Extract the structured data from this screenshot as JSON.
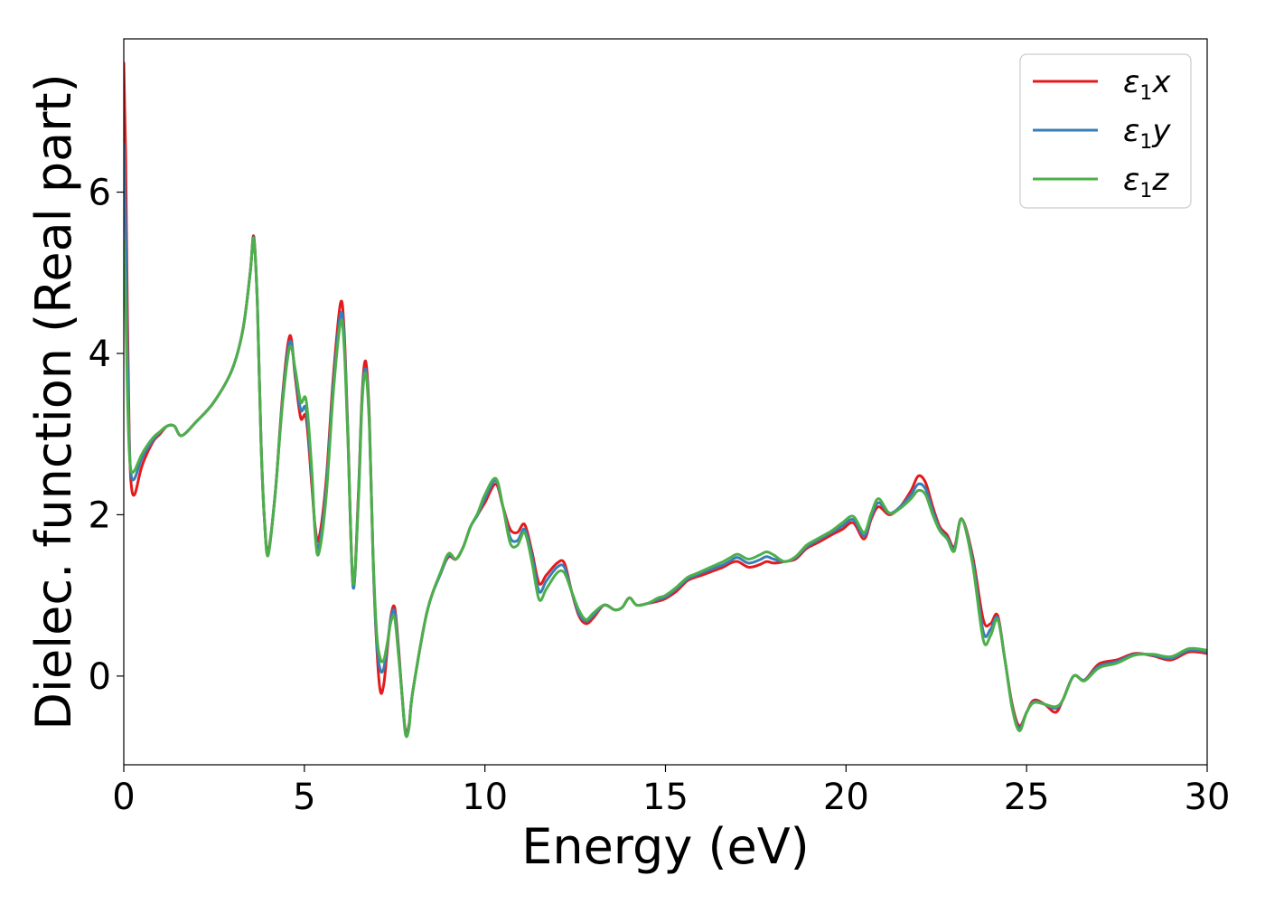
{
  "chart_data": {
    "type": "line",
    "title": "",
    "xlabel": "Energy (eV)",
    "ylabel": "Dielec. function (Real part)",
    "xlim": [
      0,
      30
    ],
    "ylim": [
      -1.1,
      7.9
    ],
    "xticks": [
      0,
      5,
      10,
      15,
      20,
      25,
      30
    ],
    "yticks": [
      0,
      2,
      4,
      6
    ],
    "grid": false,
    "legend_position": "top-right",
    "series": [
      {
        "name": "ε1x",
        "symbol": "ε",
        "subscript": "1",
        "axis": "x",
        "color": "#e41a1c",
        "x": [
          0,
          0.05,
          0.1,
          0.15,
          0.2,
          0.3,
          0.5,
          0.8,
          1.0,
          1.2,
          1.4,
          1.6,
          2.0,
          2.5,
          3.0,
          3.3,
          3.5,
          3.6,
          3.7,
          3.8,
          3.9,
          4.0,
          4.2,
          4.4,
          4.6,
          4.75,
          4.9,
          5.05,
          5.2,
          5.3,
          5.4,
          5.6,
          5.8,
          6.0,
          6.1,
          6.2,
          6.35,
          6.5,
          6.6,
          6.7,
          6.8,
          6.9,
          7.0,
          7.1,
          7.2,
          7.3,
          7.4,
          7.5,
          7.6,
          7.7,
          7.8,
          7.9,
          8.0,
          8.4,
          8.8,
          9.0,
          9.2,
          9.4,
          9.6,
          9.8,
          10.0,
          10.3,
          10.5,
          10.7,
          10.9,
          11.1,
          11.3,
          11.5,
          11.7,
          12.0,
          12.2,
          12.4,
          12.6,
          12.8,
          13.0,
          13.3,
          13.6,
          13.8,
          14.0,
          14.2,
          14.5,
          14.8,
          15.0,
          15.3,
          15.6,
          15.8,
          16.0,
          16.3,
          16.6,
          16.8,
          17.0,
          17.3,
          17.6,
          17.8,
          18.0,
          18.3,
          18.6,
          18.9,
          19.2,
          19.6,
          19.9,
          20.2,
          20.5,
          20.7,
          20.9,
          21.2,
          21.5,
          21.8,
          22.0,
          22.2,
          22.4,
          22.6,
          22.8,
          23.0,
          23.2,
          23.5,
          23.8,
          24.0,
          24.2,
          24.4,
          24.6,
          24.8,
          25.0,
          25.2,
          25.5,
          25.8,
          26.0,
          26.3,
          26.6,
          27.0,
          27.5,
          28.0,
          28.5,
          29.0,
          29.5,
          30.0
        ],
        "y": [
          7.6,
          6.5,
          4.5,
          3.0,
          2.4,
          2.25,
          2.6,
          2.9,
          3.0,
          3.1,
          3.1,
          2.98,
          3.15,
          3.4,
          3.8,
          4.3,
          5.0,
          5.45,
          4.6,
          2.9,
          1.9,
          1.55,
          2.3,
          3.5,
          4.22,
          3.7,
          3.2,
          3.2,
          2.4,
          1.85,
          1.7,
          2.4,
          3.7,
          4.62,
          4.3,
          3.1,
          1.12,
          2.3,
          3.5,
          3.9,
          3.2,
          1.5,
          0.4,
          -0.18,
          -0.1,
          0.35,
          0.75,
          0.85,
          0.4,
          -0.2,
          -0.68,
          -0.6,
          -0.2,
          0.8,
          1.3,
          1.48,
          1.45,
          1.6,
          1.85,
          2.0,
          2.15,
          2.38,
          2.1,
          1.82,
          1.78,
          1.88,
          1.55,
          1.15,
          1.25,
          1.4,
          1.4,
          1.05,
          0.75,
          0.65,
          0.72,
          0.88,
          0.82,
          0.85,
          0.97,
          0.88,
          0.9,
          0.93,
          0.96,
          1.05,
          1.18,
          1.22,
          1.25,
          1.3,
          1.35,
          1.4,
          1.42,
          1.35,
          1.38,
          1.42,
          1.4,
          1.42,
          1.45,
          1.58,
          1.65,
          1.75,
          1.82,
          1.9,
          1.7,
          1.95,
          2.1,
          2.0,
          2.1,
          2.3,
          2.48,
          2.4,
          2.1,
          1.85,
          1.75,
          1.6,
          1.95,
          1.5,
          0.7,
          0.65,
          0.75,
          0.2,
          -0.35,
          -0.62,
          -0.45,
          -0.3,
          -0.35,
          -0.45,
          -0.3,
          0.0,
          -0.05,
          0.15,
          0.2,
          0.28,
          0.25,
          0.2,
          0.3,
          0.28
        ]
      },
      {
        "name": "ε1y",
        "symbol": "ε",
        "subscript": "1",
        "axis": "y",
        "color": "#377eb8",
        "x": [
          0,
          0.05,
          0.1,
          0.15,
          0.2,
          0.3,
          0.5,
          0.8,
          1.0,
          1.2,
          1.4,
          1.6,
          2.0,
          2.5,
          3.0,
          3.3,
          3.5,
          3.6,
          3.7,
          3.8,
          3.9,
          4.0,
          4.2,
          4.4,
          4.6,
          4.75,
          4.9,
          5.05,
          5.2,
          5.3,
          5.4,
          5.6,
          5.8,
          6.0,
          6.1,
          6.2,
          6.35,
          6.5,
          6.6,
          6.7,
          6.8,
          6.9,
          7.0,
          7.1,
          7.2,
          7.3,
          7.4,
          7.5,
          7.6,
          7.7,
          7.8,
          7.9,
          8.0,
          8.4,
          8.8,
          9.0,
          9.2,
          9.4,
          9.6,
          9.8,
          10.0,
          10.3,
          10.5,
          10.7,
          10.9,
          11.1,
          11.3,
          11.5,
          11.7,
          12.0,
          12.2,
          12.4,
          12.6,
          12.8,
          13.0,
          13.3,
          13.6,
          13.8,
          14.0,
          14.2,
          14.5,
          14.8,
          15.0,
          15.3,
          15.6,
          15.8,
          16.0,
          16.3,
          16.6,
          16.8,
          17.0,
          17.3,
          17.6,
          17.8,
          18.0,
          18.3,
          18.6,
          18.9,
          19.2,
          19.6,
          19.9,
          20.2,
          20.5,
          20.7,
          20.9,
          21.2,
          21.5,
          21.8,
          22.0,
          22.2,
          22.4,
          22.6,
          22.8,
          23.0,
          23.2,
          23.5,
          23.8,
          24.0,
          24.2,
          24.4,
          24.6,
          24.8,
          25.0,
          25.2,
          25.5,
          25.8,
          26.0,
          26.3,
          26.6,
          27.0,
          27.5,
          28.0,
          28.5,
          29.0,
          29.5,
          30.0
        ],
        "y": [
          6.6,
          5.6,
          4.0,
          2.9,
          2.5,
          2.45,
          2.7,
          2.92,
          3.02,
          3.1,
          3.1,
          2.98,
          3.15,
          3.4,
          3.8,
          4.3,
          5.0,
          5.43,
          4.6,
          2.9,
          1.9,
          1.52,
          2.3,
          3.45,
          4.15,
          3.75,
          3.3,
          3.3,
          2.5,
          1.8,
          1.6,
          2.3,
          3.6,
          4.48,
          4.2,
          3.05,
          1.1,
          2.25,
          3.45,
          3.8,
          3.15,
          1.5,
          0.45,
          0.08,
          0.1,
          0.4,
          0.72,
          0.8,
          0.35,
          -0.2,
          -0.7,
          -0.62,
          -0.2,
          0.8,
          1.3,
          1.5,
          1.45,
          1.6,
          1.85,
          2.0,
          2.2,
          2.42,
          2.1,
          1.72,
          1.68,
          1.82,
          1.5,
          1.05,
          1.18,
          1.35,
          1.35,
          1.05,
          0.78,
          0.68,
          0.75,
          0.88,
          0.82,
          0.85,
          0.97,
          0.88,
          0.9,
          0.95,
          0.98,
          1.08,
          1.2,
          1.24,
          1.28,
          1.33,
          1.38,
          1.43,
          1.47,
          1.4,
          1.44,
          1.48,
          1.45,
          1.42,
          1.47,
          1.6,
          1.68,
          1.78,
          1.86,
          1.94,
          1.74,
          1.98,
          2.15,
          2.02,
          2.1,
          2.25,
          2.38,
          2.32,
          2.05,
          1.82,
          1.72,
          1.58,
          1.95,
          1.45,
          0.55,
          0.58,
          0.72,
          0.2,
          -0.38,
          -0.65,
          -0.45,
          -0.32,
          -0.35,
          -0.4,
          -0.3,
          0.0,
          -0.05,
          0.12,
          0.18,
          0.27,
          0.26,
          0.22,
          0.32,
          0.3
        ]
      },
      {
        "name": "ε1z",
        "symbol": "ε",
        "subscript": "1",
        "axis": "z",
        "color": "#4daf4a",
        "x": [
          0,
          0.05,
          0.1,
          0.15,
          0.2,
          0.3,
          0.5,
          0.8,
          1.0,
          1.2,
          1.4,
          1.6,
          2.0,
          2.5,
          3.0,
          3.3,
          3.5,
          3.6,
          3.7,
          3.8,
          3.9,
          4.0,
          4.2,
          4.4,
          4.6,
          4.75,
          4.9,
          5.05,
          5.2,
          5.3,
          5.4,
          5.6,
          5.8,
          6.0,
          6.1,
          6.2,
          6.35,
          6.5,
          6.6,
          6.7,
          6.8,
          6.9,
          7.0,
          7.1,
          7.2,
          7.3,
          7.4,
          7.5,
          7.6,
          7.7,
          7.8,
          7.9,
          8.0,
          8.4,
          8.8,
          9.0,
          9.2,
          9.4,
          9.6,
          9.8,
          10.0,
          10.3,
          10.5,
          10.7,
          10.9,
          11.1,
          11.3,
          11.5,
          11.7,
          12.0,
          12.2,
          12.4,
          12.6,
          12.8,
          13.0,
          13.3,
          13.6,
          13.8,
          14.0,
          14.2,
          14.5,
          14.8,
          15.0,
          15.3,
          15.6,
          15.8,
          16.0,
          16.3,
          16.6,
          16.8,
          17.0,
          17.3,
          17.6,
          17.8,
          18.0,
          18.3,
          18.6,
          18.9,
          19.2,
          19.6,
          19.9,
          20.2,
          20.5,
          20.7,
          20.9,
          21.2,
          21.5,
          21.8,
          22.0,
          22.2,
          22.4,
          22.6,
          22.8,
          23.0,
          23.2,
          23.5,
          23.8,
          24.0,
          24.2,
          24.4,
          24.6,
          24.8,
          25.0,
          25.2,
          25.5,
          25.8,
          26.0,
          26.3,
          26.6,
          27.0,
          27.5,
          28.0,
          28.5,
          29.0,
          29.5,
          30.0
        ],
        "y": [
          5.4,
          4.6,
          3.5,
          2.8,
          2.55,
          2.55,
          2.75,
          2.95,
          3.03,
          3.1,
          3.1,
          2.98,
          3.15,
          3.4,
          3.8,
          4.3,
          5.0,
          5.42,
          4.6,
          2.9,
          1.9,
          1.5,
          2.3,
          3.4,
          4.08,
          3.8,
          3.4,
          3.42,
          2.6,
          1.75,
          1.52,
          2.2,
          3.5,
          4.38,
          4.1,
          3.0,
          1.15,
          2.2,
          3.4,
          3.75,
          3.1,
          1.55,
          0.55,
          0.22,
          0.2,
          0.42,
          0.68,
          0.72,
          0.3,
          -0.2,
          -0.72,
          -0.64,
          -0.2,
          0.8,
          1.32,
          1.52,
          1.45,
          1.6,
          1.85,
          2.02,
          2.25,
          2.45,
          2.1,
          1.65,
          1.62,
          1.78,
          1.42,
          0.95,
          1.08,
          1.28,
          1.28,
          1.05,
          0.82,
          0.7,
          0.78,
          0.88,
          0.82,
          0.85,
          0.97,
          0.88,
          0.9,
          0.97,
          1.0,
          1.1,
          1.22,
          1.26,
          1.3,
          1.36,
          1.42,
          1.47,
          1.51,
          1.45,
          1.5,
          1.54,
          1.5,
          1.42,
          1.48,
          1.62,
          1.7,
          1.8,
          1.9,
          1.98,
          1.78,
          2.02,
          2.2,
          2.02,
          2.08,
          2.2,
          2.3,
          2.25,
          2.0,
          1.8,
          1.7,
          1.55,
          1.95,
          1.4,
          0.45,
          0.5,
          0.7,
          0.2,
          -0.4,
          -0.68,
          -0.45,
          -0.33,
          -0.35,
          -0.38,
          -0.3,
          0.0,
          -0.06,
          0.1,
          0.16,
          0.26,
          0.27,
          0.24,
          0.34,
          0.32
        ]
      }
    ]
  }
}
